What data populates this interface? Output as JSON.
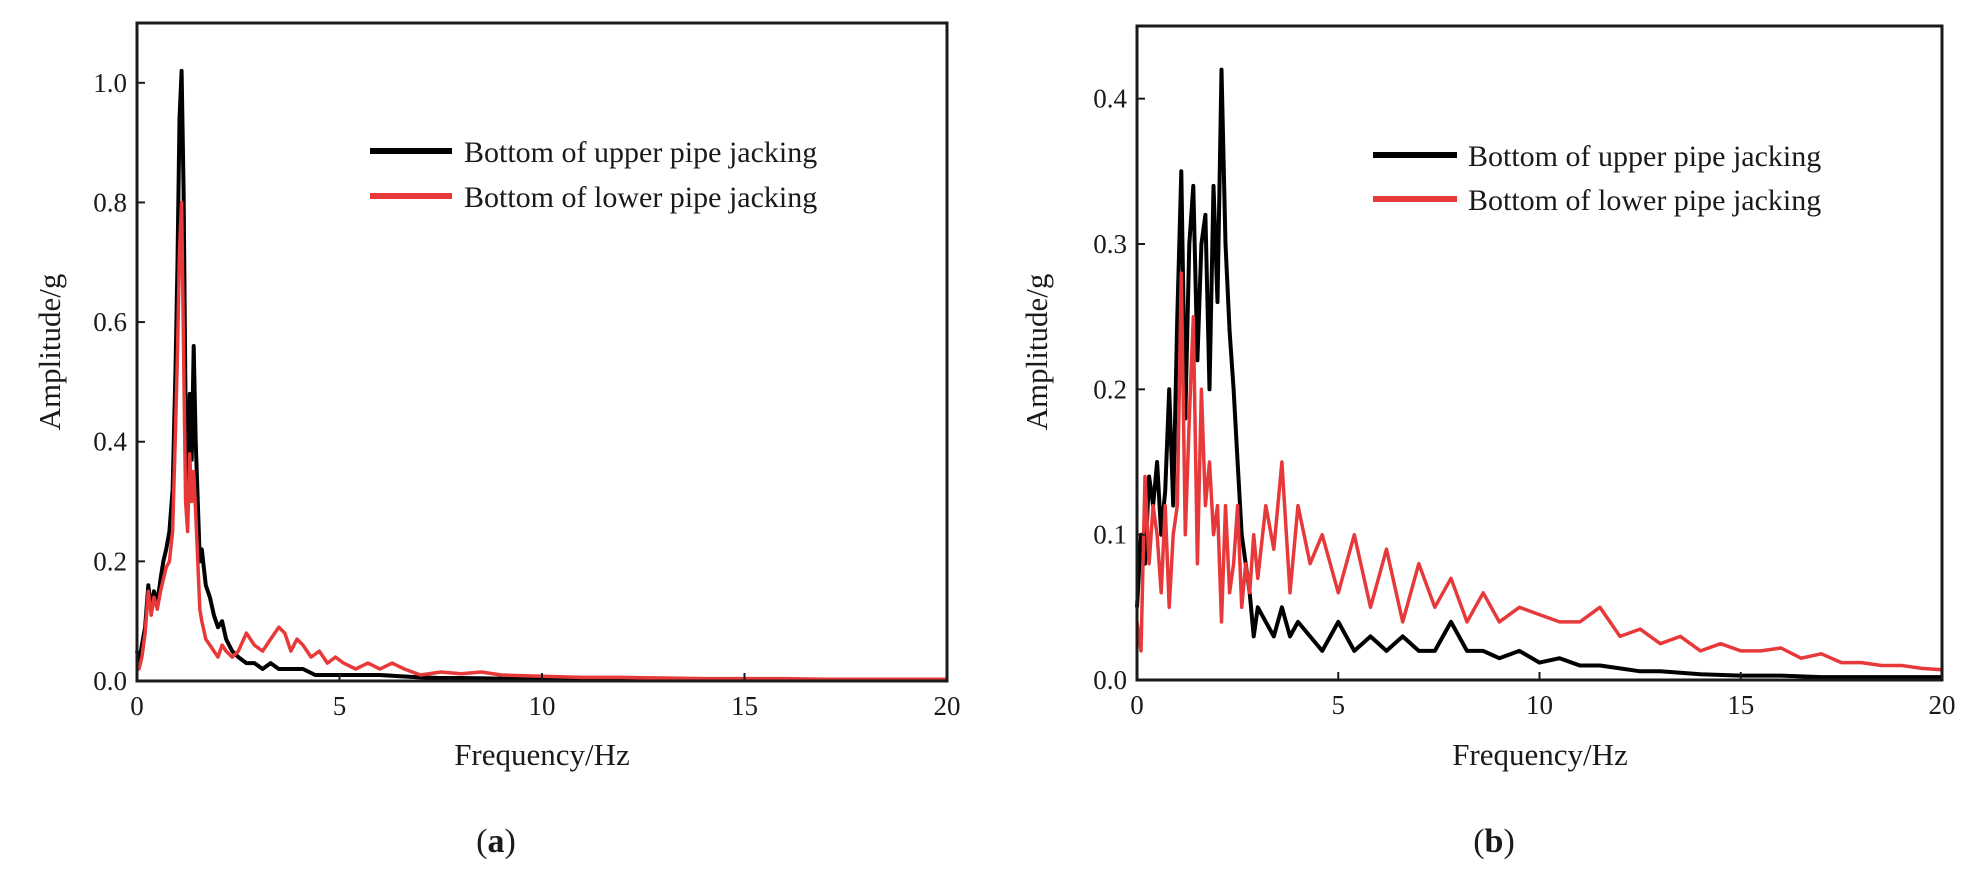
{
  "colors": {
    "upper": "#000000",
    "lower": "#e8393a",
    "axis": "#1a1a1a"
  },
  "chart_data": [
    {
      "type": "line",
      "panel": "a",
      "caption": {
        "open": "(",
        "letter": "a",
        "close": ")"
      },
      "xlabel": "Frequency/Hz",
      "ylabel": "Amplitude/g",
      "xlim": [
        0,
        20
      ],
      "ylim": [
        0,
        1.1
      ],
      "xticks": [
        0,
        5,
        10,
        15,
        20
      ],
      "xtick_labels": [
        "0",
        "5",
        "10",
        "15",
        "20"
      ],
      "yticks": [
        0,
        0.2,
        0.4,
        0.6,
        0.8,
        1.0
      ],
      "ytick_labels": [
        "0.0",
        "0.2",
        "0.4",
        "0.6",
        "0.8",
        "1.0"
      ],
      "legend_position": "top-right",
      "series": [
        {
          "name": "Bottom of upper pipe jacking",
          "color": "#000000",
          "x": [
            0,
            0.05,
            0.12,
            0.2,
            0.28,
            0.35,
            0.42,
            0.5,
            0.58,
            0.65,
            0.72,
            0.8,
            0.88,
            0.95,
            1.0,
            1.05,
            1.1,
            1.15,
            1.2,
            1.25,
            1.3,
            1.35,
            1.4,
            1.45,
            1.5,
            1.55,
            1.6,
            1.7,
            1.8,
            1.9,
            2.0,
            2.1,
            2.2,
            2.35,
            2.5,
            2.7,
            2.9,
            3.1,
            3.3,
            3.5,
            3.7,
            3.9,
            4.1,
            4.4,
            4.7,
            5.0,
            5.5,
            6.0,
            6.5,
            7.0,
            7.5,
            8.0,
            9.0,
            10.0,
            11.0,
            12.0,
            13.0,
            14.0,
            15.0,
            16.0,
            17.0,
            18.0,
            19.0,
            20.0
          ],
          "y": [
            0.05,
            0.03,
            0.06,
            0.09,
            0.16,
            0.12,
            0.15,
            0.13,
            0.17,
            0.2,
            0.22,
            0.25,
            0.32,
            0.52,
            0.7,
            0.94,
            1.02,
            0.82,
            0.45,
            0.3,
            0.48,
            0.37,
            0.56,
            0.4,
            0.3,
            0.2,
            0.22,
            0.16,
            0.14,
            0.11,
            0.09,
            0.1,
            0.07,
            0.05,
            0.04,
            0.03,
            0.03,
            0.02,
            0.03,
            0.02,
            0.02,
            0.02,
            0.02,
            0.01,
            0.01,
            0.01,
            0.01,
            0.01,
            0.008,
            0.006,
            0.005,
            0.005,
            0.004,
            0.004,
            0.003,
            0.003,
            0.003,
            0.003,
            0.003,
            0.002,
            0.002,
            0.002,
            0.002,
            0.002
          ]
        },
        {
          "name": "Bottom of lower pipe jacking",
          "color": "#e8393a",
          "x": [
            0,
            0.05,
            0.12,
            0.2,
            0.28,
            0.35,
            0.42,
            0.5,
            0.58,
            0.65,
            0.72,
            0.8,
            0.88,
            0.95,
            1.0,
            1.05,
            1.1,
            1.15,
            1.2,
            1.25,
            1.3,
            1.35,
            1.4,
            1.45,
            1.5,
            1.55,
            1.6,
            1.7,
            1.8,
            1.9,
            2.0,
            2.1,
            2.2,
            2.35,
            2.5,
            2.7,
            2.9,
            3.1,
            3.3,
            3.5,
            3.65,
            3.8,
            3.95,
            4.1,
            4.3,
            4.5,
            4.7,
            4.9,
            5.1,
            5.4,
            5.7,
            6.0,
            6.3,
            6.6,
            7.0,
            7.5,
            8.0,
            8.5,
            9.0,
            10.0,
            11.0,
            12.0,
            13.0,
            14.0,
            15.0,
            16.0,
            17.0,
            18.0,
            19.0,
            20.0
          ],
          "y": [
            0.03,
            0.02,
            0.04,
            0.08,
            0.15,
            0.11,
            0.14,
            0.12,
            0.15,
            0.17,
            0.19,
            0.2,
            0.25,
            0.42,
            0.55,
            0.72,
            0.8,
            0.55,
            0.3,
            0.25,
            0.38,
            0.3,
            0.35,
            0.28,
            0.2,
            0.12,
            0.1,
            0.07,
            0.06,
            0.05,
            0.04,
            0.06,
            0.05,
            0.04,
            0.05,
            0.08,
            0.06,
            0.05,
            0.07,
            0.09,
            0.08,
            0.05,
            0.07,
            0.06,
            0.04,
            0.05,
            0.03,
            0.04,
            0.03,
            0.02,
            0.03,
            0.02,
            0.03,
            0.02,
            0.01,
            0.015,
            0.012,
            0.015,
            0.01,
            0.008,
            0.006,
            0.006,
            0.005,
            0.004,
            0.004,
            0.004,
            0.003,
            0.003,
            0.003,
            0.003
          ]
        }
      ]
    },
    {
      "type": "line",
      "panel": "b",
      "caption": {
        "open": "(",
        "letter": "b",
        "close": ")"
      },
      "xlabel": "Frequency/Hz",
      "ylabel": "Amplitude/g",
      "xlim": [
        0,
        20
      ],
      "ylim": [
        0,
        0.45
      ],
      "xticks": [
        0,
        5,
        10,
        15,
        20
      ],
      "xtick_labels": [
        "0",
        "5",
        "10",
        "15",
        "20"
      ],
      "yticks": [
        0,
        0.1,
        0.2,
        0.3,
        0.4
      ],
      "ytick_labels": [
        "0.0",
        "0.1",
        "0.2",
        "0.3",
        "0.4"
      ],
      "legend_position": "top-right",
      "series": [
        {
          "name": "Bottom of upper pipe jacking",
          "color": "#000000",
          "x": [
            0,
            0.1,
            0.2,
            0.3,
            0.4,
            0.5,
            0.6,
            0.7,
            0.8,
            0.9,
            1.0,
            1.1,
            1.2,
            1.3,
            1.4,
            1.5,
            1.6,
            1.7,
            1.8,
            1.9,
            2.0,
            2.1,
            2.2,
            2.3,
            2.4,
            2.5,
            2.6,
            2.7,
            2.8,
            2.9,
            3.0,
            3.2,
            3.4,
            3.6,
            3.8,
            4.0,
            4.3,
            4.6,
            5.0,
            5.4,
            5.8,
            6.2,
            6.6,
            7.0,
            7.4,
            7.8,
            8.2,
            8.6,
            9.0,
            9.5,
            10.0,
            10.5,
            11.0,
            11.5,
            12.0,
            12.5,
            13.0,
            14.0,
            15.0,
            16.0,
            17.0,
            18.0,
            19.0,
            20.0
          ],
          "y": [
            0.05,
            0.1,
            0.08,
            0.14,
            0.12,
            0.15,
            0.1,
            0.13,
            0.2,
            0.12,
            0.25,
            0.35,
            0.18,
            0.3,
            0.34,
            0.22,
            0.3,
            0.32,
            0.2,
            0.34,
            0.26,
            0.42,
            0.3,
            0.24,
            0.2,
            0.15,
            0.1,
            0.08,
            0.06,
            0.03,
            0.05,
            0.04,
            0.03,
            0.05,
            0.03,
            0.04,
            0.03,
            0.02,
            0.04,
            0.02,
            0.03,
            0.02,
            0.03,
            0.02,
            0.02,
            0.04,
            0.02,
            0.02,
            0.015,
            0.02,
            0.012,
            0.015,
            0.01,
            0.01,
            0.008,
            0.006,
            0.006,
            0.004,
            0.003,
            0.003,
            0.002,
            0.002,
            0.002,
            0.002
          ]
        },
        {
          "name": "Bottom of lower pipe jacking",
          "color": "#e8393a",
          "x": [
            0,
            0.1,
            0.2,
            0.3,
            0.4,
            0.5,
            0.6,
            0.7,
            0.8,
            0.9,
            1.0,
            1.1,
            1.2,
            1.3,
            1.4,
            1.5,
            1.6,
            1.7,
            1.8,
            1.9,
            2.0,
            2.1,
            2.2,
            2.3,
            2.4,
            2.5,
            2.6,
            2.7,
            2.8,
            2.9,
            3.0,
            3.2,
            3.4,
            3.6,
            3.8,
            4.0,
            4.3,
            4.6,
            5.0,
            5.4,
            5.8,
            6.2,
            6.6,
            7.0,
            7.4,
            7.8,
            8.2,
            8.6,
            9.0,
            9.5,
            10.0,
            10.5,
            11.0,
            11.5,
            12.0,
            12.5,
            13.0,
            13.5,
            14.0,
            14.5,
            15.0,
            15.5,
            16.0,
            16.5,
            17.0,
            17.5,
            18.0,
            18.5,
            19.0,
            19.5,
            20.0
          ],
          "y": [
            0.04,
            0.02,
            0.14,
            0.08,
            0.12,
            0.1,
            0.06,
            0.12,
            0.05,
            0.1,
            0.12,
            0.28,
            0.1,
            0.18,
            0.25,
            0.08,
            0.2,
            0.12,
            0.15,
            0.1,
            0.12,
            0.04,
            0.12,
            0.06,
            0.08,
            0.12,
            0.05,
            0.08,
            0.06,
            0.1,
            0.07,
            0.12,
            0.09,
            0.15,
            0.06,
            0.12,
            0.08,
            0.1,
            0.06,
            0.1,
            0.05,
            0.09,
            0.04,
            0.08,
            0.05,
            0.07,
            0.04,
            0.06,
            0.04,
            0.05,
            0.045,
            0.04,
            0.04,
            0.05,
            0.03,
            0.035,
            0.025,
            0.03,
            0.02,
            0.025,
            0.02,
            0.02,
            0.022,
            0.015,
            0.018,
            0.012,
            0.012,
            0.01,
            0.01,
            0.008,
            0.007
          ]
        }
      ]
    }
  ]
}
